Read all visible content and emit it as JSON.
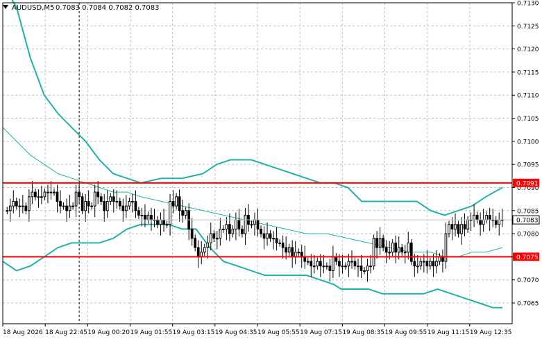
{
  "header": {
    "symbol": "AUDUSD,M5",
    "ohlc": "0.7083 0.7084 0.7082 0.7083",
    "menu_icon": "triangle-down-icon"
  },
  "colors": {
    "background": "#ffffff",
    "grid": "#c0c0c0",
    "candle": "#000000",
    "bands": "#20b2aa",
    "levels": "#ff0000",
    "level_label_text": "#ffffff",
    "price_tag_bg": "#ffffff"
  },
  "chart_data": {
    "type": "candlestick",
    "symbol": "AUDUSD",
    "timeframe": "M5",
    "grid": true,
    "ylim": [
      0.70605,
      0.713
    ],
    "y_ticks": [
      "0.7130",
      "0.7125",
      "0.7120",
      "0.7115",
      "0.7110",
      "0.7105",
      "0.7100",
      "0.7095",
      "0.7090",
      "0.7085",
      "0.7080",
      "0.7075",
      "0.7070",
      "0.7065"
    ],
    "x_ticks": [
      "18 Aug 2026",
      "18 Aug 22:45",
      "19 Aug 00:20",
      "19 Aug 01:55",
      "19 Aug 03:15",
      "19 Aug 04:35",
      "19 Aug 05:55",
      "19 Aug 07:15",
      "19 Aug 08:35",
      "19 Aug 09:55",
      "19 Aug 11:15",
      "19 Aug 12:35"
    ],
    "horizontal_levels": [
      {
        "value": 0.7091,
        "label": "0.7091"
      },
      {
        "value": 0.7075,
        "label": "0.7075"
      }
    ],
    "current_price": {
      "value": 0.7083,
      "label": "0.7083"
    },
    "crosshair_bar_index": 23,
    "closes": [
      0.7085,
      0.7086,
      0.7087,
      0.7086,
      0.7086,
      0.7086,
      0.7085,
      0.7088,
      0.7089,
      0.7088,
      0.7088,
      0.7088,
      0.7089,
      0.7089,
      0.7089,
      0.7089,
      0.7087,
      0.7086,
      0.7086,
      0.7085,
      0.7086,
      0.7086,
      0.7089,
      0.7088,
      0.7085,
      0.7087,
      0.7086,
      0.7086,
      0.7089,
      0.7088,
      0.7087,
      0.7085,
      0.7087,
      0.7088,
      0.7087,
      0.7087,
      0.7086,
      0.7085,
      0.7086,
      0.7087,
      0.7087,
      0.7085,
      0.7084,
      0.7084,
      0.7083,
      0.7084,
      0.7083,
      0.7083,
      0.7082,
      0.7083,
      0.7082,
      0.7082,
      0.7087,
      0.7086,
      0.7088,
      0.7085,
      0.7084,
      0.7085,
      0.7081,
      0.7079,
      0.7077,
      0.7075,
      0.7076,
      0.7077,
      0.7078,
      0.708,
      0.7079,
      0.7079,
      0.7081,
      0.7081,
      0.7082,
      0.708,
      0.7081,
      0.7083,
      0.7081,
      0.708,
      0.7084,
      0.7082,
      0.7082,
      0.7083,
      0.7081,
      0.708,
      0.7079,
      0.708,
      0.7079,
      0.7079,
      0.7078,
      0.7078,
      0.7077,
      0.7076,
      0.7077,
      0.7075,
      0.7076,
      0.7076,
      0.7075,
      0.7074,
      0.7074,
      0.7073,
      0.7073,
      0.7074,
      0.7073,
      0.7073,
      0.7073,
      0.7072,
      0.7075,
      0.7074,
      0.7073,
      0.7073,
      0.7073,
      0.7074,
      0.7074,
      0.7073,
      0.7073,
      0.7072,
      0.7072,
      0.7073,
      0.7073,
      0.7079,
      0.7077,
      0.7079,
      0.7077,
      0.7076,
      0.7076,
      0.7078,
      0.7076,
      0.7077,
      0.7076,
      0.7076,
      0.7078,
      0.7074,
      0.7073,
      0.7073,
      0.7074,
      0.7074,
      0.7073,
      0.7074,
      0.7073,
      0.7074,
      0.7075,
      0.7074,
      0.708,
      0.7082,
      0.7081,
      0.7082,
      0.708,
      0.7082,
      0.7081,
      0.7083,
      0.7083,
      0.7084,
      0.7083,
      0.7082,
      0.7083,
      0.7084,
      0.7083,
      0.7083,
      0.7082,
      0.7083,
      0.7083
    ],
    "bands_upper": [
      [
        0,
        0.7134
      ],
      [
        20,
        0.7129
      ],
      [
        40,
        0.7118
      ],
      [
        60,
        0.711
      ],
      [
        80,
        0.7106
      ],
      [
        100,
        0.7103
      ],
      [
        120,
        0.71
      ],
      [
        140,
        0.7096
      ],
      [
        160,
        0.7093
      ],
      [
        180,
        0.7092
      ],
      [
        200,
        0.7091
      ],
      [
        230,
        0.7092
      ],
      [
        260,
        0.7092
      ],
      [
        290,
        0.7093
      ],
      [
        310,
        0.7095
      ],
      [
        330,
        0.7096
      ],
      [
        345,
        0.7096
      ],
      [
        360,
        0.7096
      ],
      [
        380,
        0.7095
      ],
      [
        400,
        0.7094
      ],
      [
        420,
        0.7093
      ],
      [
        440,
        0.7092
      ],
      [
        460,
        0.7091
      ],
      [
        480,
        0.7091
      ],
      [
        500,
        0.709
      ],
      [
        520,
        0.7087
      ],
      [
        540,
        0.7087
      ],
      [
        560,
        0.7087
      ],
      [
        580,
        0.7087
      ],
      [
        600,
        0.7087
      ],
      [
        620,
        0.7085
      ],
      [
        640,
        0.7084
      ],
      [
        660,
        0.7085
      ],
      [
        680,
        0.7086
      ],
      [
        700,
        0.7088
      ],
      [
        724,
        0.709
      ]
    ],
    "bands_middle": [
      [
        0,
        0.7103
      ],
      [
        20,
        0.71
      ],
      [
        40,
        0.7097
      ],
      [
        60,
        0.7095
      ],
      [
        80,
        0.7093
      ],
      [
        100,
        0.7092
      ],
      [
        120,
        0.7091
      ],
      [
        140,
        0.709
      ],
      [
        160,
        0.7089
      ],
      [
        180,
        0.7089
      ],
      [
        200,
        0.7088
      ],
      [
        230,
        0.7087
      ],
      [
        260,
        0.7086
      ],
      [
        290,
        0.7085
      ],
      [
        320,
        0.7084
      ],
      [
        350,
        0.7083
      ],
      [
        380,
        0.7082
      ],
      [
        410,
        0.7081
      ],
      [
        440,
        0.708
      ],
      [
        470,
        0.708
      ],
      [
        500,
        0.7079
      ],
      [
        530,
        0.7078
      ],
      [
        560,
        0.7077
      ],
      [
        590,
        0.7076
      ],
      [
        620,
        0.7076
      ],
      [
        640,
        0.7075
      ],
      [
        660,
        0.7075
      ],
      [
        680,
        0.7076
      ],
      [
        700,
        0.7076
      ],
      [
        724,
        0.7077
      ]
    ],
    "bands_lower": [
      [
        0,
        0.7074
      ],
      [
        20,
        0.7072
      ],
      [
        40,
        0.7073
      ],
      [
        60,
        0.7075
      ],
      [
        80,
        0.7077
      ],
      [
        100,
        0.7078
      ],
      [
        120,
        0.7078
      ],
      [
        140,
        0.7078
      ],
      [
        160,
        0.7079
      ],
      [
        180,
        0.7081
      ],
      [
        200,
        0.7082
      ],
      [
        220,
        0.7082
      ],
      [
        240,
        0.7082
      ],
      [
        260,
        0.7081
      ],
      [
        280,
        0.7081
      ],
      [
        300,
        0.7077
      ],
      [
        320,
        0.7074
      ],
      [
        340,
        0.7073
      ],
      [
        360,
        0.7072
      ],
      [
        380,
        0.7071
      ],
      [
        400,
        0.7071
      ],
      [
        420,
        0.7071
      ],
      [
        440,
        0.7071
      ],
      [
        460,
        0.707
      ],
      [
        480,
        0.7069
      ],
      [
        490,
        0.7068
      ],
      [
        510,
        0.7068
      ],
      [
        530,
        0.7068
      ],
      [
        550,
        0.7067
      ],
      [
        570,
        0.7067
      ],
      [
        590,
        0.7067
      ],
      [
        610,
        0.7067
      ],
      [
        630,
        0.7068
      ],
      [
        650,
        0.7067
      ],
      [
        670,
        0.7066
      ],
      [
        690,
        0.7065
      ],
      [
        710,
        0.7064
      ],
      [
        724,
        0.7064
      ]
    ]
  }
}
